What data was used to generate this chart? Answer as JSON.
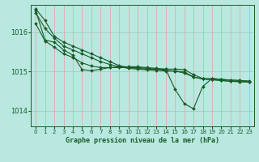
{
  "title": "Graphe pression niveau de la mer (hPa)",
  "bg_color": "#b8e8e0",
  "grid_color_v": "#e8a0a0",
  "grid_color_h": "#a0c8b8",
  "line_color": "#1a5c28",
  "xlim": [
    -0.5,
    23.5
  ],
  "ylim": [
    1013.6,
    1016.7
  ],
  "yticks": [
    1014,
    1015,
    1016
  ],
  "xtick_labels": [
    "0",
    "1",
    "2",
    "3",
    "4",
    "5",
    "6",
    "7",
    "8",
    "9",
    "10",
    "11",
    "12",
    "13",
    "14",
    "15",
    "16",
    "17",
    "18",
    "19",
    "20",
    "21",
    "22",
    "23"
  ],
  "lines": [
    [
      1016.6,
      1016.3,
      1015.9,
      1015.75,
      1015.65,
      1015.55,
      1015.45,
      1015.35,
      1015.25,
      1015.15,
      1015.1,
      1015.08,
      1015.06,
      1015.06,
      1015.06,
      1015.06,
      1015.05,
      1014.92,
      1014.82,
      1014.82,
      1014.8,
      1014.78,
      1014.77,
      1014.76
    ],
    [
      1016.5,
      1016.1,
      1015.85,
      1015.65,
      1015.55,
      1015.45,
      1015.35,
      1015.25,
      1015.18,
      1015.12,
      1015.08,
      1015.06,
      1015.04,
      1015.03,
      1015.01,
      1015.01,
      1014.96,
      1014.86,
      1014.81,
      1014.79,
      1014.77,
      1014.75,
      1014.74,
      1014.73
    ],
    [
      1016.55,
      1015.8,
      1015.75,
      1015.55,
      1015.42,
      1015.05,
      1015.02,
      1015.06,
      1015.1,
      1015.12,
      1015.12,
      1015.12,
      1015.1,
      1015.08,
      1015.06,
      1014.55,
      1014.18,
      1014.05,
      1014.62,
      1014.82,
      1014.8,
      1014.78,
      1014.77,
      1014.73
    ],
    [
      1016.22,
      1015.78,
      1015.62,
      1015.45,
      1015.36,
      1015.22,
      1015.14,
      1015.1,
      1015.1,
      1015.1,
      1015.1,
      1015.1,
      1015.08,
      1015.06,
      1015.03,
      1015.01,
      1014.99,
      1014.86,
      1014.81,
      1014.79,
      1014.77,
      1014.75,
      1014.74,
      1014.73
    ]
  ]
}
